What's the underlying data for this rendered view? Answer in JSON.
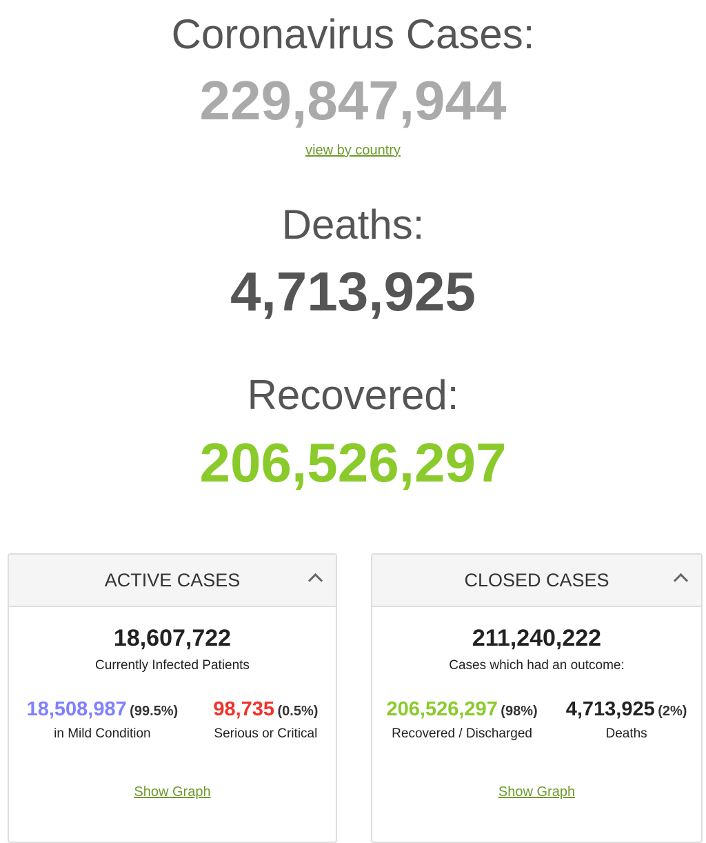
{
  "summary": {
    "cases_label": "Coronavirus Cases:",
    "cases_value": "229,847,944",
    "view_by_country": "view by country",
    "deaths_label": "Deaths:",
    "deaths_value": "4,713,925",
    "recovered_label": "Recovered:",
    "recovered_value": "206,526,297"
  },
  "active": {
    "title": "ACTIVE CASES",
    "total": "18,607,722",
    "total_label": "Currently Infected Patients",
    "mild_value": "18,508,987",
    "mild_pct": "(99.5%)",
    "mild_label": "in Mild Condition",
    "serious_value": "98,735",
    "serious_pct": "(0.5%)",
    "serious_label": "Serious or Critical",
    "graph_link": "Show Graph"
  },
  "closed": {
    "title": "CLOSED CASES",
    "total": "211,240,222",
    "total_label": "Cases which had an outcome:",
    "recovered_value": "206,526,297",
    "recovered_pct": "(98%)",
    "recovered_label": "Recovered / Discharged",
    "deaths_value": "4,713,925",
    "deaths_pct": "(2%)",
    "deaths_label": "Deaths",
    "graph_link": "Show Graph"
  },
  "colors": {
    "cases": "#aaaaaa",
    "deaths": "#555555",
    "recovered": "#8aca2b",
    "mild": "#8080ff",
    "serious": "#f0332a",
    "link": "#6c9a2b"
  },
  "icons": {
    "collapse": "chevron-up-icon"
  }
}
